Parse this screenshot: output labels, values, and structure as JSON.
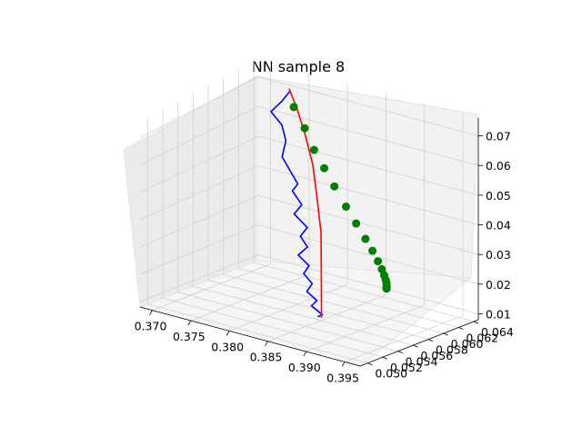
{
  "chart_data": {
    "type": "scatter",
    "title": "NN sample 8",
    "x_axis": {
      "ticks": [
        "0.370",
        "0.375",
        "0.380",
        "0.385",
        "0.390",
        "0.395"
      ]
    },
    "y_axis": {
      "ticks": [
        "0.050",
        "0.052",
        "0.054",
        "0.056",
        "0.058",
        "0.060",
        "0.062",
        "0.064"
      ]
    },
    "z_axis": {
      "ticks": [
        "0.01",
        "0.02",
        "0.03",
        "0.04",
        "0.05",
        "0.06",
        "0.07"
      ]
    },
    "series": [
      {
        "style": "line",
        "color": "#0000ff",
        "points": [
          [
            0.3735,
            0.0636,
            0.07
          ],
          [
            0.374,
            0.062,
            0.069
          ],
          [
            0.3738,
            0.0608,
            0.067
          ],
          [
            0.376,
            0.06,
            0.065
          ],
          [
            0.3775,
            0.059,
            0.062
          ],
          [
            0.378,
            0.058,
            0.058
          ],
          [
            0.38,
            0.057,
            0.056
          ],
          [
            0.382,
            0.056,
            0.054
          ],
          [
            0.3818,
            0.0555,
            0.052
          ],
          [
            0.384,
            0.0545,
            0.05
          ],
          [
            0.3835,
            0.054,
            0.047
          ],
          [
            0.386,
            0.0532,
            0.045
          ],
          [
            0.3855,
            0.0528,
            0.042
          ],
          [
            0.387,
            0.0522,
            0.04
          ],
          [
            0.3862,
            0.0518,
            0.037
          ],
          [
            0.388,
            0.0514,
            0.035
          ],
          [
            0.3875,
            0.0512,
            0.032
          ],
          [
            0.389,
            0.0508,
            0.03
          ],
          [
            0.3885,
            0.0506,
            0.027
          ],
          [
            0.39,
            0.0504,
            0.025
          ],
          [
            0.3895,
            0.0502,
            0.023
          ],
          [
            0.391,
            0.0501,
            0.021
          ],
          [
            0.3905,
            0.05,
            0.02
          ]
        ]
      },
      {
        "style": "line",
        "color": "#ff0000",
        "points": [
          [
            0.373,
            0.064,
            0.07
          ],
          [
            0.376,
            0.062,
            0.068
          ],
          [
            0.379,
            0.06,
            0.064
          ],
          [
            0.382,
            0.058,
            0.058
          ],
          [
            0.3845,
            0.056,
            0.051
          ],
          [
            0.387,
            0.054,
            0.043
          ],
          [
            0.389,
            0.052,
            0.034
          ],
          [
            0.3905,
            0.0505,
            0.025
          ],
          [
            0.391,
            0.05,
            0.02
          ]
        ]
      },
      {
        "style": "markers",
        "color": "#008000",
        "points": [
          [
            0.374,
            0.0636,
            0.065
          ],
          [
            0.3765,
            0.0625,
            0.061
          ],
          [
            0.379,
            0.0612,
            0.057
          ],
          [
            0.3815,
            0.06,
            0.054
          ],
          [
            0.384,
            0.0588,
            0.051
          ],
          [
            0.3865,
            0.0578,
            0.047
          ],
          [
            0.3888,
            0.0568,
            0.044
          ],
          [
            0.3908,
            0.056,
            0.041
          ],
          [
            0.3925,
            0.0552,
            0.039
          ],
          [
            0.3938,
            0.0546,
            0.037
          ],
          [
            0.3948,
            0.0541,
            0.0355
          ],
          [
            0.3955,
            0.0537,
            0.0343
          ],
          [
            0.396,
            0.0534,
            0.0334
          ],
          [
            0.3963,
            0.0532,
            0.0328
          ],
          [
            0.3965,
            0.053,
            0.0324
          ],
          [
            0.3966,
            0.0529,
            0.0321
          ],
          [
            0.3967,
            0.0528,
            0.0319
          ],
          [
            0.3968,
            0.0527,
            0.0318
          ],
          [
            0.3968,
            0.0527,
            0.0317
          ]
        ]
      }
    ]
  }
}
